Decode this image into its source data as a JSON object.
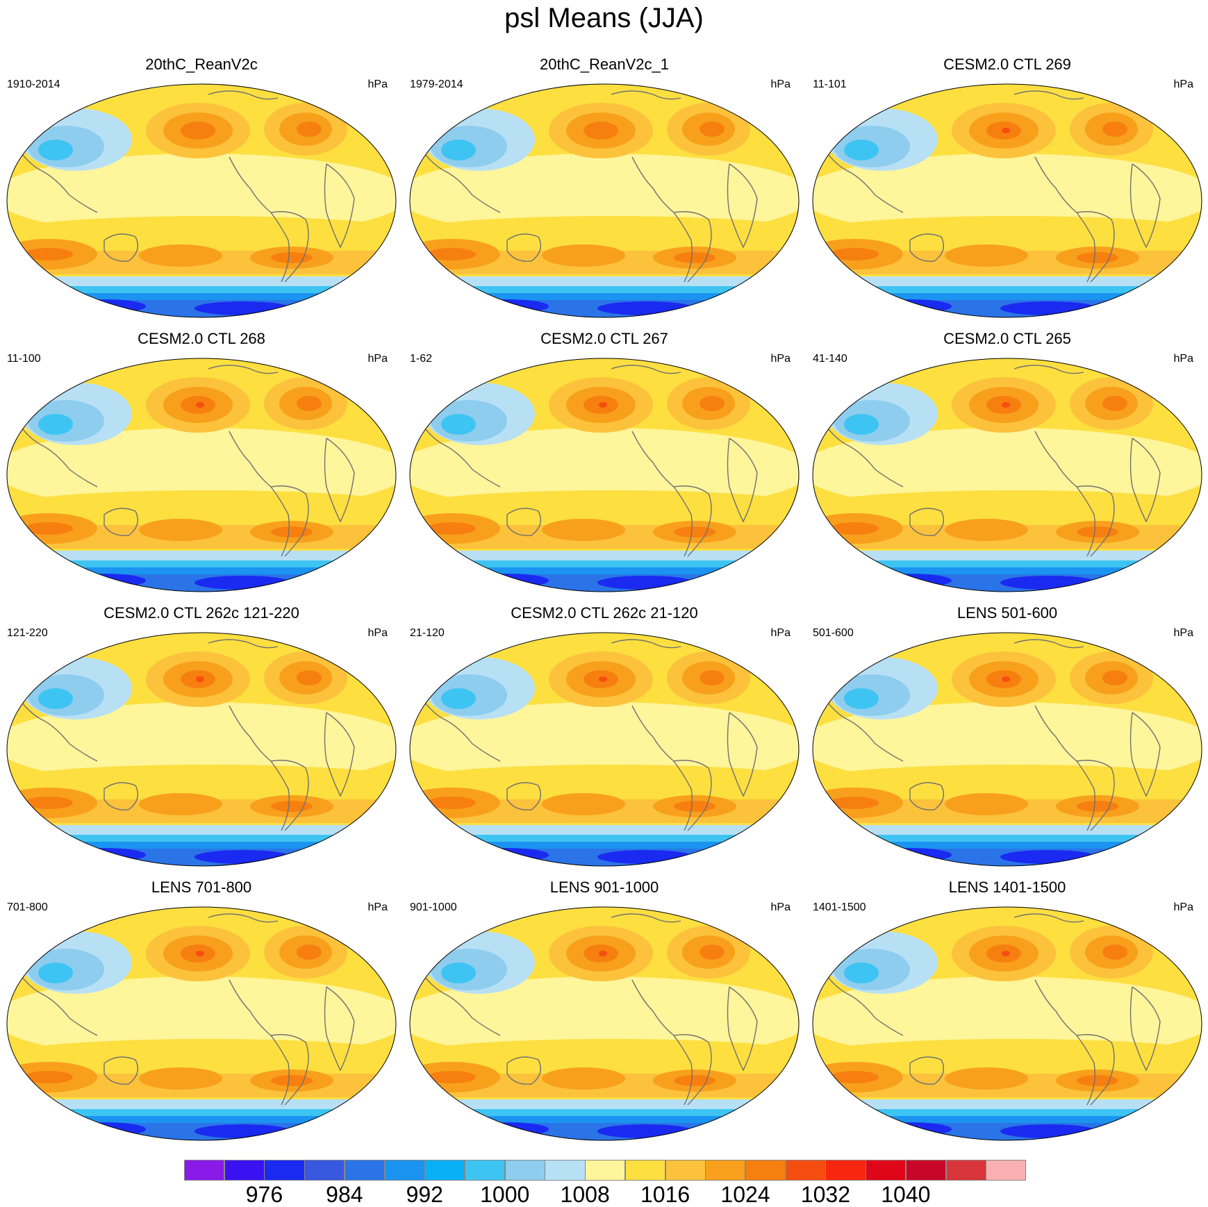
{
  "figure": {
    "title": "psl Means (JJA)"
  },
  "panels": [
    {
      "title": "20thC_ReanV2c",
      "period": "1910-2014",
      "units": "hPa",
      "antarctic_high": true
    },
    {
      "title": "20thC_ReanV2c_1",
      "period": "1979-2014",
      "units": "hPa",
      "antarctic_high": true
    },
    {
      "title": "CESM2.0 CTL 269",
      "period": "11-101",
      "units": "hPa",
      "antarctic_high": false
    },
    {
      "title": "CESM2.0 CTL 268",
      "period": "11-100",
      "units": "hPa",
      "antarctic_high": false
    },
    {
      "title": "CESM2.0 CTL 267",
      "period": "1-62",
      "units": "hPa",
      "antarctic_high": false
    },
    {
      "title": "CESM2.0 CTL 265",
      "period": "41-140",
      "units": "hPa",
      "antarctic_high": false
    },
    {
      "title": "CESM2.0 CTL 262c 121-220",
      "period": "121-220",
      "units": "hPa",
      "antarctic_high": false
    },
    {
      "title": "CESM2.0 CTL 262c 21-120",
      "period": "21-120",
      "units": "hPa",
      "antarctic_high": false
    },
    {
      "title": "LENS 501-600",
      "period": "501-600",
      "units": "hPa",
      "antarctic_high": false
    },
    {
      "title": "LENS 701-800",
      "period": "701-800",
      "units": "hPa",
      "antarctic_high": false
    },
    {
      "title": "LENS 901-1000",
      "period": "901-1000",
      "units": "hPa",
      "antarctic_high": false
    },
    {
      "title": "LENS 1401-1500",
      "period": "1401-1500",
      "units": "hPa",
      "antarctic_high": false
    }
  ],
  "colorbar": {
    "colors": [
      "#8a1ae8",
      "#3a12f2",
      "#1a2af0",
      "#3858e0",
      "#2a74e8",
      "#1a94f0",
      "#08b0f5",
      "#3ec4f2",
      "#8ecdee",
      "#b8e0f5",
      "#fff59a",
      "#fddf40",
      "#fcc23c",
      "#f8a01c",
      "#f77f10",
      "#f54e10",
      "#f8260e",
      "#e0061a",
      "#c8062a",
      "#d8353a",
      "#fab0b0"
    ],
    "labels": [
      "976",
      "984",
      "992",
      "1000",
      "1008",
      "1016",
      "1024",
      "1032",
      "1040"
    ],
    "label_boundary_index": [
      2,
      4,
      6,
      8,
      10,
      12,
      14,
      16,
      18
    ]
  }
}
